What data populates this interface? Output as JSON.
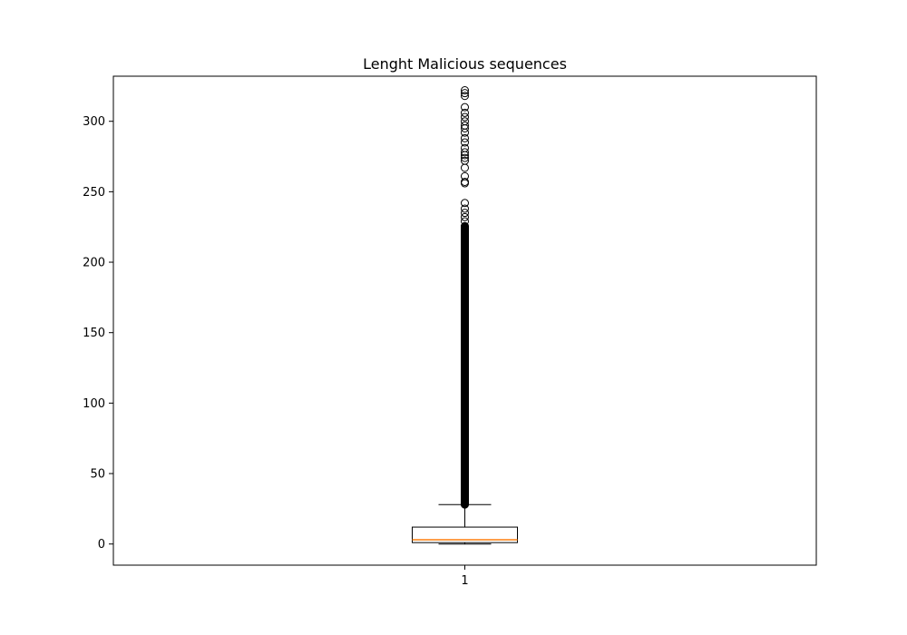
{
  "chart_data": {
    "type": "box",
    "title": "Lenght Malicious sequences",
    "xlabel": "",
    "ylabel": "",
    "categories": [
      "1"
    ],
    "ylim": [
      -15,
      332
    ],
    "yticks": [
      0,
      50,
      100,
      150,
      200,
      250,
      300
    ],
    "grid": false,
    "legend": "none",
    "box": {
      "whisker_low": 0,
      "q1": 1,
      "median": 3,
      "q3": 12,
      "whisker_high": 28,
      "outliers_dense_range": [
        28,
        226
      ],
      "outliers": [
        229,
        232,
        235,
        238,
        242,
        256,
        257,
        261,
        267,
        272,
        274,
        276,
        278,
        281,
        285,
        288,
        292,
        295,
        297,
        300,
        303,
        306,
        310,
        318,
        320,
        322
      ]
    },
    "colors": {
      "box": "#000000",
      "median": "#ff7f0e",
      "flier": "#000000",
      "frame": "#000000"
    }
  }
}
